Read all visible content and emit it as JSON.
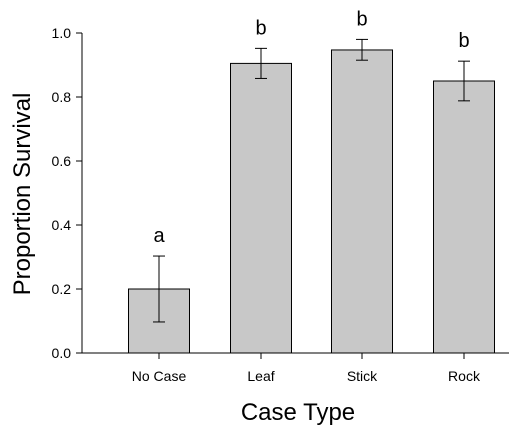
{
  "chart_data": {
    "type": "bar",
    "title": "",
    "xlabel": "Case Type",
    "ylabel": "Proportion Survival",
    "categories": [
      "No Case",
      "Leaf",
      "Stick",
      "Rock"
    ],
    "values": [
      0.2,
      0.905,
      0.947,
      0.85
    ],
    "error_low": [
      0.097,
      0.858,
      0.915,
      0.788
    ],
    "error_high": [
      0.303,
      0.952,
      0.98,
      0.912
    ],
    "significance_letters": [
      "a",
      "b",
      "b",
      "b"
    ],
    "ylim": [
      0,
      1.0
    ],
    "yticks": [
      "0.0",
      "0.2",
      "0.4",
      "0.6",
      "0.8",
      "1.0"
    ],
    "grid": false,
    "legend": "none",
    "bar_color": "#c8c8c8",
    "edge_color": "#000000"
  }
}
